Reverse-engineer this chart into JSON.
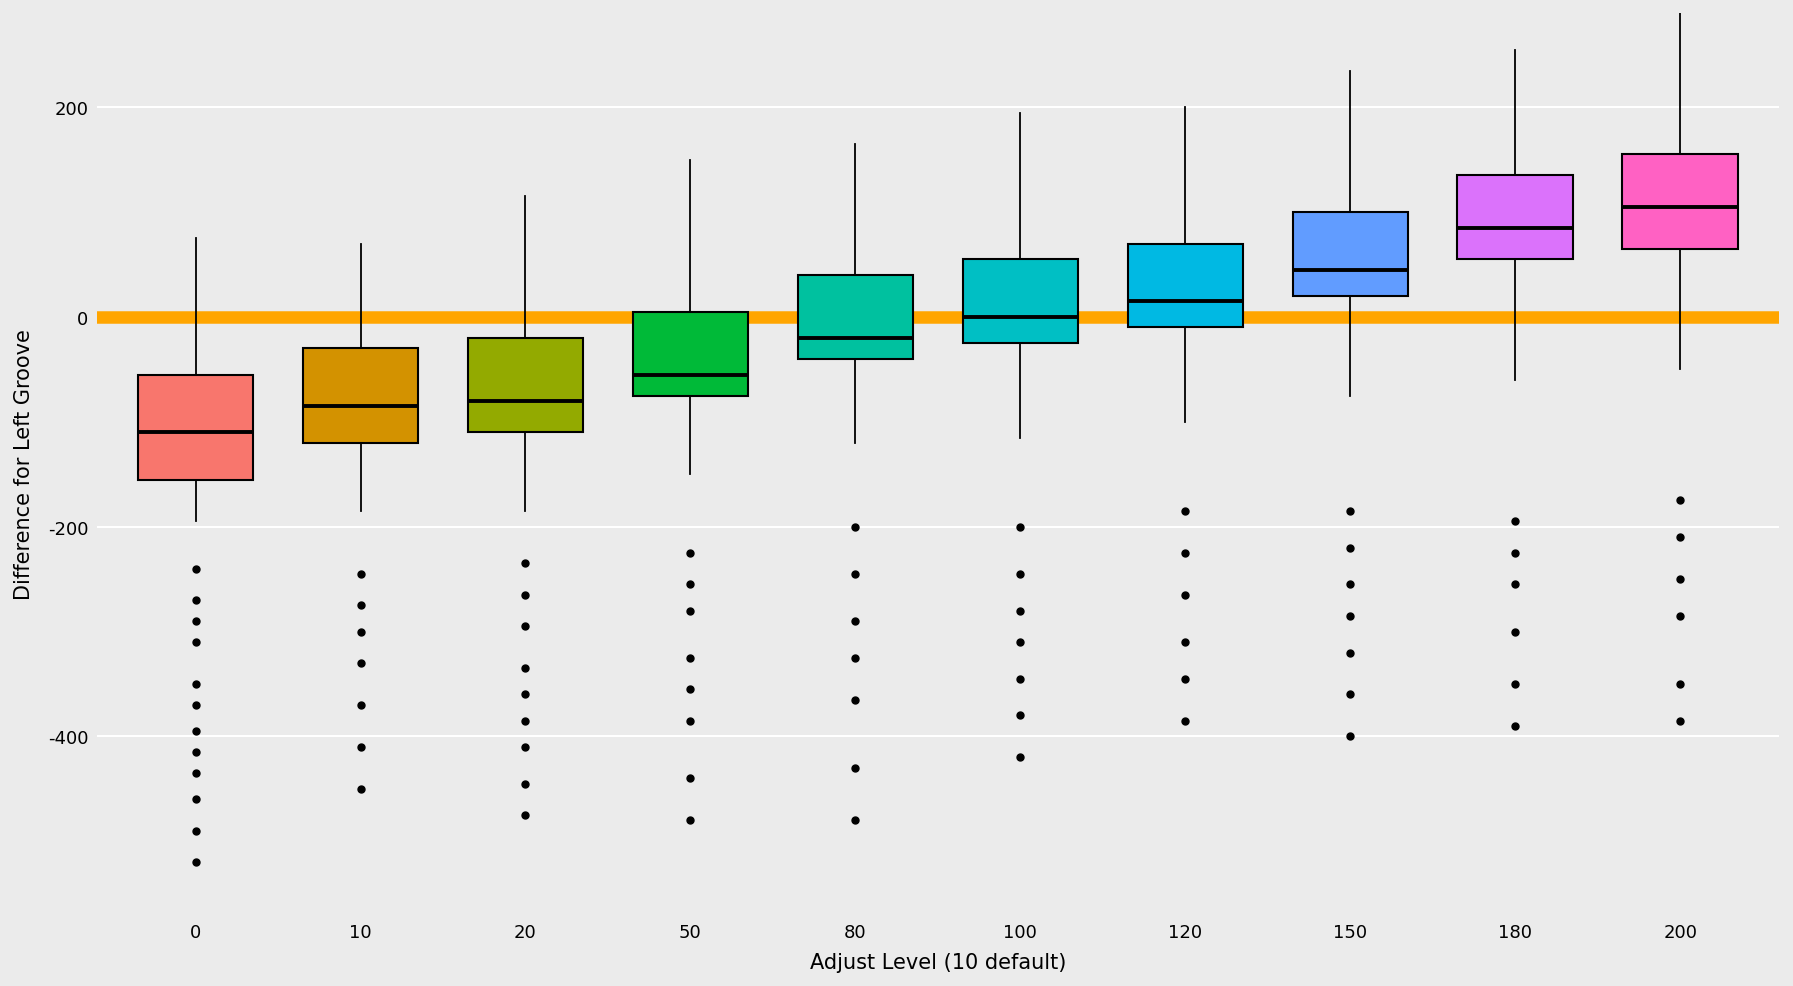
{
  "categories": [
    0,
    10,
    20,
    50,
    80,
    100,
    120,
    150,
    180,
    200
  ],
  "colors": [
    "#F8766D",
    "#D39200",
    "#93AA00",
    "#00BA38",
    "#00C19F",
    "#00BFC4",
    "#00B9E3",
    "#619CFF",
    "#DB72FB",
    "#FF61C3"
  ],
  "box_stats": {
    "0": {
      "q1": -155,
      "median": -110,
      "q3": -55,
      "whisker_low": -195,
      "whisker_high": 75,
      "outliers": [
        -240,
        -270,
        -290,
        -310,
        -350,
        -370,
        -395,
        -415,
        -435,
        -460,
        -490,
        -520
      ]
    },
    "10": {
      "q1": -120,
      "median": -85,
      "q3": -30,
      "whisker_low": -185,
      "whisker_high": 70,
      "outliers": [
        -245,
        -275,
        -300,
        -330,
        -370,
        -410,
        -450
      ]
    },
    "20": {
      "q1": -110,
      "median": -80,
      "q3": -20,
      "whisker_low": -185,
      "whisker_high": 115,
      "outliers": [
        -235,
        -265,
        -295,
        -335,
        -360,
        -385,
        -410,
        -445,
        -475
      ]
    },
    "50": {
      "q1": -75,
      "median": -55,
      "q3": 5,
      "whisker_low": -150,
      "whisker_high": 150,
      "outliers": [
        -225,
        -255,
        -280,
        -325,
        -355,
        -385,
        -440,
        -480
      ]
    },
    "80": {
      "q1": -40,
      "median": -20,
      "q3": 40,
      "whisker_low": -120,
      "whisker_high": 165,
      "outliers": [
        -200,
        -245,
        -290,
        -325,
        -365,
        -430,
        -480
      ]
    },
    "100": {
      "q1": -25,
      "median": 0,
      "q3": 55,
      "whisker_low": -115,
      "whisker_high": 195,
      "outliers": [
        -200,
        -245,
        -280,
        -310,
        -345,
        -380,
        -420
      ]
    },
    "120": {
      "q1": -10,
      "median": 15,
      "q3": 70,
      "whisker_low": -100,
      "whisker_high": 200,
      "outliers": [
        -185,
        -225,
        -265,
        -310,
        -345,
        -385
      ]
    },
    "150": {
      "q1": 20,
      "median": 45,
      "q3": 100,
      "whisker_low": -75,
      "whisker_high": 235,
      "outliers": [
        -185,
        -220,
        -255,
        -285,
        -320,
        -360,
        -400
      ]
    },
    "180": {
      "q1": 55,
      "median": 85,
      "q3": 135,
      "whisker_low": -60,
      "whisker_high": 255,
      "outliers": [
        -195,
        -225,
        -255,
        -300,
        -350,
        -390
      ]
    },
    "200": {
      "q1": 65,
      "median": 105,
      "q3": 155,
      "whisker_low": -50,
      "whisker_high": 310,
      "outliers": [
        -175,
        -210,
        -250,
        -285,
        -350,
        -385
      ]
    }
  },
  "hline_y": 0,
  "hline_color": "#FFA500",
  "hline_lw": 9,
  "ylabel": "Difference for Left Groove",
  "xlabel": "Adjust Level (10 default)",
  "ylim": [
    -570,
    290
  ],
  "yticks": [
    -400,
    -200,
    0,
    200
  ],
  "background_color": "#EBEBEB",
  "grid_color": "#FFFFFF",
  "label_fontsize": 15,
  "tick_fontsize": 13,
  "box_width": 0.7,
  "median_color": "#000000",
  "whisker_color": "#000000",
  "outlier_color": "#000000",
  "outlier_size": 5
}
